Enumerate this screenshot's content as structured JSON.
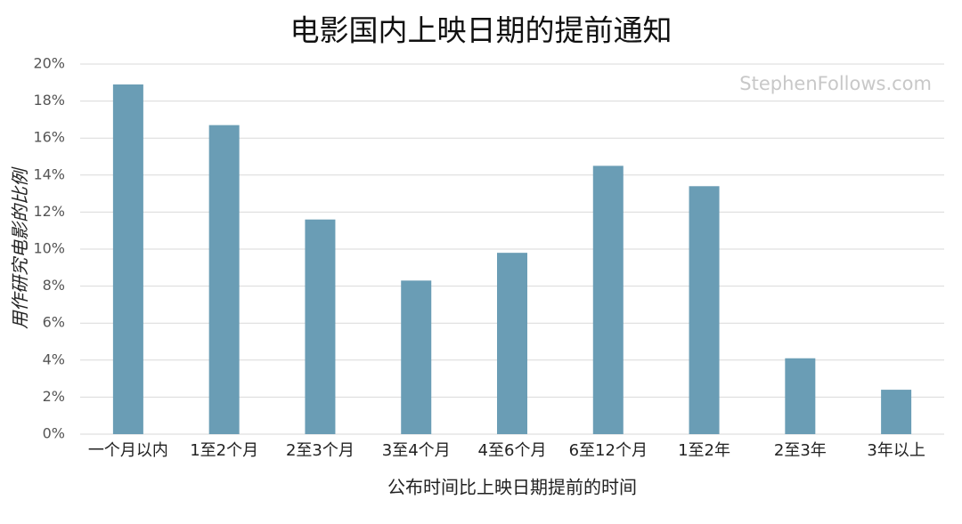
{
  "chart_data": {
    "type": "bar",
    "title": "电影国内上映日期的提前通知",
    "x_label": "公布时间比上映日期提前的时间",
    "y_label": "用作研究电影的比例",
    "annotation": "StephenFollows.com",
    "categories": [
      "一个月以内",
      "1至2个月",
      "2至3个月",
      "3至4个月",
      "4至6个月",
      "6至12个月",
      "1至2年",
      "2至3年",
      "3年以上"
    ],
    "values": [
      18.9,
      16.7,
      11.6,
      8.3,
      9.8,
      14.5,
      13.4,
      4.1,
      2.4
    ],
    "color": "#6a9db5",
    "ylim": [
      0,
      20
    ],
    "yticks": [
      {
        "value": 0,
        "label": "0%"
      },
      {
        "value": 2,
        "label": "2%"
      },
      {
        "value": 4,
        "label": "4%"
      },
      {
        "value": 6,
        "label": "6%"
      },
      {
        "value": 8,
        "label": "8%"
      },
      {
        "value": 10,
        "label": "10%"
      },
      {
        "value": 12,
        "label": "12%"
      },
      {
        "value": 14,
        "label": "14%"
      },
      {
        "value": 16,
        "label": "16%"
      },
      {
        "value": 18,
        "label": "18%"
      },
      {
        "value": 20,
        "label": "20%"
      }
    ],
    "grid": true
  }
}
